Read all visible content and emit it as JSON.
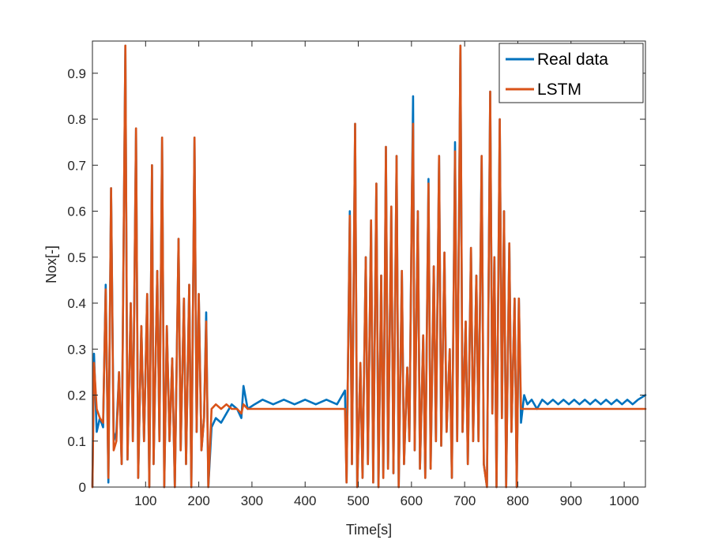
{
  "chart_data": {
    "type": "line",
    "title": "",
    "xlabel": "Time[s]",
    "ylabel": "Nox[-]",
    "xlim": [
      0,
      1040
    ],
    "ylim": [
      0,
      0.97
    ],
    "grid": false,
    "legend_position": "top-right",
    "x_ticks": [
      100,
      200,
      300,
      400,
      500,
      600,
      700,
      800,
      900,
      1000
    ],
    "y_ticks": [
      0,
      0.1,
      0.2,
      0.3,
      0.4,
      0.5,
      0.6,
      0.7,
      0.8,
      0.9
    ],
    "x_tick_labels": [
      "100",
      "200",
      "300",
      "400",
      "500",
      "600",
      "700",
      "800",
      "900",
      "1000"
    ],
    "y_tick_labels": [
      "0",
      "0.1",
      "0.2",
      "0.3",
      "0.4",
      "0.5",
      "0.6",
      "0.7",
      "0.8",
      "0.9"
    ],
    "series": [
      {
        "name": "Real data",
        "color": "#0072BD",
        "points": [
          [
            0,
            0.0
          ],
          [
            3,
            0.29
          ],
          [
            8,
            0.12
          ],
          [
            14,
            0.15
          ],
          [
            20,
            0.13
          ],
          [
            25,
            0.44
          ],
          [
            30,
            0.01
          ],
          [
            35,
            0.65
          ],
          [
            40,
            0.1
          ],
          [
            45,
            0.12
          ],
          [
            50,
            0.25
          ],
          [
            55,
            0.05
          ],
          [
            62,
            0.96
          ],
          [
            66,
            0.06
          ],
          [
            72,
            0.4
          ],
          [
            76,
            0.1
          ],
          [
            82,
            0.78
          ],
          [
            86,
            0.02
          ],
          [
            92,
            0.35
          ],
          [
            97,
            0.1
          ],
          [
            103,
            0.42
          ],
          [
            107,
            0.0
          ],
          [
            112,
            0.7
          ],
          [
            115,
            0.05
          ],
          [
            122,
            0.47
          ],
          [
            126,
            0.1
          ],
          [
            131,
            0.76
          ],
          [
            135,
            0.0
          ],
          [
            140,
            0.35
          ],
          [
            145,
            0.1
          ],
          [
            150,
            0.28
          ],
          [
            155,
            0.0
          ],
          [
            162,
            0.54
          ],
          [
            166,
            0.08
          ],
          [
            172,
            0.41
          ],
          [
            176,
            0.05
          ],
          [
            182,
            0.44
          ],
          [
            186,
            0.0
          ],
          [
            192,
            0.76
          ],
          [
            196,
            0.12
          ],
          [
            200,
            0.42
          ],
          [
            205,
            0.08
          ],
          [
            210,
            0.15
          ],
          [
            214,
            0.38
          ],
          [
            218,
            0.0
          ],
          [
            224,
            0.13
          ],
          [
            232,
            0.15
          ],
          [
            242,
            0.14
          ],
          [
            252,
            0.16
          ],
          [
            262,
            0.18
          ],
          [
            272,
            0.17
          ],
          [
            280,
            0.15
          ],
          [
            284,
            0.22
          ],
          [
            292,
            0.17
          ],
          [
            305,
            0.18
          ],
          [
            320,
            0.19
          ],
          [
            340,
            0.18
          ],
          [
            360,
            0.19
          ],
          [
            380,
            0.18
          ],
          [
            400,
            0.19
          ],
          [
            420,
            0.18
          ],
          [
            440,
            0.19
          ],
          [
            460,
            0.18
          ],
          [
            475,
            0.21
          ],
          [
            478,
            0.01
          ],
          [
            484,
            0.6
          ],
          [
            488,
            0.05
          ],
          [
            494,
            0.79
          ],
          [
            498,
            0.0
          ],
          [
            504,
            0.27
          ],
          [
            508,
            0.02
          ],
          [
            514,
            0.5
          ],
          [
            518,
            0.05
          ],
          [
            524,
            0.58
          ],
          [
            528,
            0.01
          ],
          [
            534,
            0.66
          ],
          [
            538,
            0.0
          ],
          [
            543,
            0.46
          ],
          [
            547,
            0.02
          ],
          [
            552,
            0.74
          ],
          [
            556,
            0.04
          ],
          [
            562,
            0.61
          ],
          [
            566,
            0.03
          ],
          [
            572,
            0.72
          ],
          [
            576,
            0.0
          ],
          [
            582,
            0.47
          ],
          [
            586,
            0.05
          ],
          [
            592,
            0.26
          ],
          [
            596,
            0.1
          ],
          [
            601,
            0.65
          ],
          [
            603,
            0.85
          ],
          [
            606,
            0.08
          ],
          [
            612,
            0.6
          ],
          [
            616,
            0.04
          ],
          [
            622,
            0.33
          ],
          [
            626,
            0.02
          ],
          [
            632,
            0.67
          ],
          [
            636,
            0.04
          ],
          [
            642,
            0.48
          ],
          [
            646,
            0.1
          ],
          [
            652,
            0.72
          ],
          [
            656,
            0.09
          ],
          [
            662,
            0.51
          ],
          [
            666,
            0.12
          ],
          [
            672,
            0.3
          ],
          [
            676,
            0.02
          ],
          [
            682,
            0.75
          ],
          [
            686,
            0.1
          ],
          [
            692,
            0.96
          ],
          [
            696,
            0.12
          ],
          [
            702,
            0.36
          ],
          [
            706,
            0.05
          ],
          [
            712,
            0.52
          ],
          [
            716,
            0.1
          ],
          [
            722,
            0.46
          ],
          [
            726,
            0.1
          ],
          [
            732,
            0.72
          ],
          [
            736,
            0.05
          ],
          [
            742,
            0.0
          ],
          [
            748,
            0.86
          ],
          [
            752,
            0.16
          ],
          [
            756,
            0.5
          ],
          [
            760,
            0.0
          ],
          [
            766,
            0.8
          ],
          [
            770,
            0.15
          ],
          [
            774,
            0.6
          ],
          [
            778,
            0.0
          ],
          [
            784,
            0.53
          ],
          [
            788,
            0.12
          ],
          [
            794,
            0.41
          ],
          [
            798,
            0.0
          ],
          [
            802,
            0.41
          ],
          [
            806,
            0.14
          ],
          [
            812,
            0.2
          ],
          [
            818,
            0.18
          ],
          [
            826,
            0.19
          ],
          [
            836,
            0.17
          ],
          [
            846,
            0.19
          ],
          [
            856,
            0.18
          ],
          [
            866,
            0.19
          ],
          [
            876,
            0.18
          ],
          [
            886,
            0.19
          ],
          [
            896,
            0.18
          ],
          [
            906,
            0.19
          ],
          [
            916,
            0.18
          ],
          [
            926,
            0.19
          ],
          [
            936,
            0.18
          ],
          [
            946,
            0.19
          ],
          [
            956,
            0.18
          ],
          [
            966,
            0.19
          ],
          [
            976,
            0.18
          ],
          [
            986,
            0.19
          ],
          [
            996,
            0.18
          ],
          [
            1006,
            0.19
          ],
          [
            1016,
            0.18
          ],
          [
            1026,
            0.19
          ],
          [
            1040,
            0.2
          ]
        ]
      },
      {
        "name": "LSTM",
        "color": "#D95319",
        "points": [
          [
            0,
            0.0
          ],
          [
            3,
            0.27
          ],
          [
            8,
            0.17
          ],
          [
            14,
            0.15
          ],
          [
            20,
            0.14
          ],
          [
            25,
            0.43
          ],
          [
            30,
            0.02
          ],
          [
            35,
            0.65
          ],
          [
            40,
            0.08
          ],
          [
            45,
            0.1
          ],
          [
            50,
            0.25
          ],
          [
            55,
            0.05
          ],
          [
            62,
            0.96
          ],
          [
            66,
            0.06
          ],
          [
            72,
            0.4
          ],
          [
            76,
            0.1
          ],
          [
            82,
            0.78
          ],
          [
            86,
            0.02
          ],
          [
            92,
            0.35
          ],
          [
            97,
            0.1
          ],
          [
            103,
            0.42
          ],
          [
            107,
            0.0
          ],
          [
            112,
            0.7
          ],
          [
            115,
            0.05
          ],
          [
            122,
            0.47
          ],
          [
            126,
            0.1
          ],
          [
            131,
            0.76
          ],
          [
            135,
            0.0
          ],
          [
            140,
            0.35
          ],
          [
            145,
            0.1
          ],
          [
            150,
            0.28
          ],
          [
            155,
            0.0
          ],
          [
            162,
            0.54
          ],
          [
            166,
            0.08
          ],
          [
            172,
            0.41
          ],
          [
            176,
            0.05
          ],
          [
            182,
            0.44
          ],
          [
            186,
            0.0
          ],
          [
            192,
            0.76
          ],
          [
            196,
            0.12
          ],
          [
            200,
            0.42
          ],
          [
            205,
            0.08
          ],
          [
            210,
            0.15
          ],
          [
            214,
            0.36
          ],
          [
            218,
            0.0
          ],
          [
            224,
            0.17
          ],
          [
            232,
            0.18
          ],
          [
            242,
            0.17
          ],
          [
            252,
            0.18
          ],
          [
            262,
            0.17
          ],
          [
            272,
            0.17
          ],
          [
            280,
            0.16
          ],
          [
            284,
            0.18
          ],
          [
            292,
            0.17
          ],
          [
            305,
            0.17
          ],
          [
            320,
            0.17
          ],
          [
            340,
            0.17
          ],
          [
            360,
            0.17
          ],
          [
            380,
            0.17
          ],
          [
            400,
            0.17
          ],
          [
            420,
            0.17
          ],
          [
            440,
            0.17
          ],
          [
            460,
            0.17
          ],
          [
            475,
            0.17
          ],
          [
            478,
            0.01
          ],
          [
            484,
            0.59
          ],
          [
            488,
            0.05
          ],
          [
            494,
            0.79
          ],
          [
            498,
            0.0
          ],
          [
            504,
            0.27
          ],
          [
            508,
            0.02
          ],
          [
            514,
            0.5
          ],
          [
            518,
            0.05
          ],
          [
            524,
            0.58
          ],
          [
            528,
            0.01
          ],
          [
            534,
            0.66
          ],
          [
            538,
            0.0
          ],
          [
            543,
            0.46
          ],
          [
            547,
            0.02
          ],
          [
            552,
            0.74
          ],
          [
            556,
            0.04
          ],
          [
            562,
            0.61
          ],
          [
            566,
            0.03
          ],
          [
            572,
            0.72
          ],
          [
            576,
            0.0
          ],
          [
            582,
            0.47
          ],
          [
            586,
            0.05
          ],
          [
            592,
            0.26
          ],
          [
            596,
            0.1
          ],
          [
            601,
            0.65
          ],
          [
            603,
            0.79
          ],
          [
            606,
            0.08
          ],
          [
            612,
            0.6
          ],
          [
            616,
            0.04
          ],
          [
            622,
            0.33
          ],
          [
            626,
            0.02
          ],
          [
            632,
            0.66
          ],
          [
            636,
            0.04
          ],
          [
            642,
            0.48
          ],
          [
            646,
            0.1
          ],
          [
            652,
            0.72
          ],
          [
            656,
            0.09
          ],
          [
            662,
            0.51
          ],
          [
            666,
            0.12
          ],
          [
            672,
            0.3
          ],
          [
            676,
            0.02
          ],
          [
            682,
            0.73
          ],
          [
            686,
            0.1
          ],
          [
            692,
            0.96
          ],
          [
            696,
            0.12
          ],
          [
            702,
            0.36
          ],
          [
            706,
            0.05
          ],
          [
            712,
            0.52
          ],
          [
            716,
            0.1
          ],
          [
            722,
            0.46
          ],
          [
            726,
            0.1
          ],
          [
            732,
            0.72
          ],
          [
            736,
            0.05
          ],
          [
            742,
            0.0
          ],
          [
            748,
            0.86
          ],
          [
            752,
            0.16
          ],
          [
            756,
            0.5
          ],
          [
            760,
            0.0
          ],
          [
            766,
            0.8
          ],
          [
            770,
            0.15
          ],
          [
            774,
            0.6
          ],
          [
            778,
            0.0
          ],
          [
            784,
            0.53
          ],
          [
            788,
            0.12
          ],
          [
            794,
            0.41
          ],
          [
            798,
            0.0
          ],
          [
            802,
            0.41
          ],
          [
            806,
            0.17
          ],
          [
            812,
            0.17
          ],
          [
            818,
            0.17
          ],
          [
            826,
            0.17
          ],
          [
            836,
            0.17
          ],
          [
            846,
            0.17
          ],
          [
            856,
            0.17
          ],
          [
            866,
            0.17
          ],
          [
            876,
            0.17
          ],
          [
            886,
            0.17
          ],
          [
            896,
            0.17
          ],
          [
            906,
            0.17
          ],
          [
            916,
            0.17
          ],
          [
            926,
            0.17
          ],
          [
            936,
            0.17
          ],
          [
            946,
            0.17
          ],
          [
            956,
            0.17
          ],
          [
            966,
            0.17
          ],
          [
            976,
            0.17
          ],
          [
            986,
            0.17
          ],
          [
            996,
            0.17
          ],
          [
            1006,
            0.17
          ],
          [
            1016,
            0.17
          ],
          [
            1026,
            0.17
          ],
          [
            1040,
            0.17
          ]
        ]
      }
    ]
  }
}
